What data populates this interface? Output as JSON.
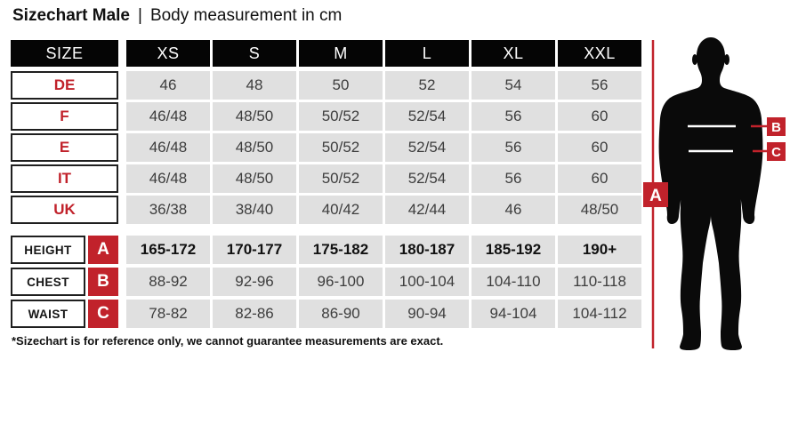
{
  "title": {
    "main": "Sizechart Male",
    "separator": "|",
    "subtitle": "Body measurement in cm"
  },
  "colors": {
    "accent_red": "#c1222b",
    "header_bg": "#050505",
    "cell_bg": "#e0e0e0",
    "cell_text": "#3d3d3d"
  },
  "size_table": {
    "header": [
      "SIZE",
      "XS",
      "S",
      "M",
      "L",
      "XL",
      "XXL"
    ],
    "rows": [
      {
        "label": "DE",
        "values": [
          "46",
          "48",
          "50",
          "52",
          "54",
          "56"
        ]
      },
      {
        "label": "F",
        "values": [
          "46/48",
          "48/50",
          "50/52",
          "52/54",
          "56",
          "60"
        ]
      },
      {
        "label": "E",
        "values": [
          "46/48",
          "48/50",
          "50/52",
          "52/54",
          "56",
          "60"
        ]
      },
      {
        "label": "IT",
        "values": [
          "46/48",
          "48/50",
          "50/52",
          "52/54",
          "56",
          "60"
        ]
      },
      {
        "label": "UK",
        "values": [
          "36/38",
          "38/40",
          "40/42",
          "42/44",
          "46",
          "48/50"
        ]
      }
    ]
  },
  "measurement_table": {
    "rows": [
      {
        "label": "HEIGHT",
        "marker": "A",
        "bold": true,
        "values": [
          "165-172",
          "170-177",
          "175-182",
          "180-187",
          "185-192",
          "190+"
        ]
      },
      {
        "label": "CHEST",
        "marker": "B",
        "bold": false,
        "values": [
          "88-92",
          "92-96",
          "96-100",
          "100-104",
          "104-110",
          "110-118"
        ]
      },
      {
        "label": "WAIST",
        "marker": "C",
        "bold": false,
        "values": [
          "78-82",
          "82-86",
          "86-90",
          "90-94",
          "94-104",
          "104-112"
        ]
      }
    ]
  },
  "figure": {
    "markers": [
      "A",
      "B",
      "C"
    ]
  },
  "footnote": "*Sizechart is for reference only, we cannot guarantee measurements are exact.",
  "chart_data": {
    "type": "table",
    "title": "Sizechart Male | Body measurement in cm",
    "columns": [
      "SIZE",
      "XS",
      "S",
      "M",
      "L",
      "XL",
      "XXL"
    ],
    "rows": [
      [
        "DE",
        "46",
        "48",
        "50",
        "52",
        "54",
        "56"
      ],
      [
        "F",
        "46/48",
        "48/50",
        "50/52",
        "52/54",
        "56",
        "60"
      ],
      [
        "E",
        "46/48",
        "48/50",
        "50/52",
        "52/54",
        "56",
        "60"
      ],
      [
        "IT",
        "46/48",
        "48/50",
        "50/52",
        "52/54",
        "56",
        "60"
      ],
      [
        "UK",
        "36/38",
        "38/40",
        "40/42",
        "42/44",
        "46",
        "48/50"
      ],
      [
        "HEIGHT (A)",
        "165-172",
        "170-177",
        "175-182",
        "180-187",
        "185-192",
        "190+"
      ],
      [
        "CHEST (B)",
        "88-92",
        "92-96",
        "96-100",
        "100-104",
        "104-110",
        "110-118"
      ],
      [
        "WAIST (C)",
        "78-82",
        "82-86",
        "86-90",
        "90-94",
        "94-104",
        "104-112"
      ]
    ],
    "annotations": [
      "A = height line on body figure",
      "B = chest line on body figure",
      "C = waist line on body figure"
    ]
  }
}
